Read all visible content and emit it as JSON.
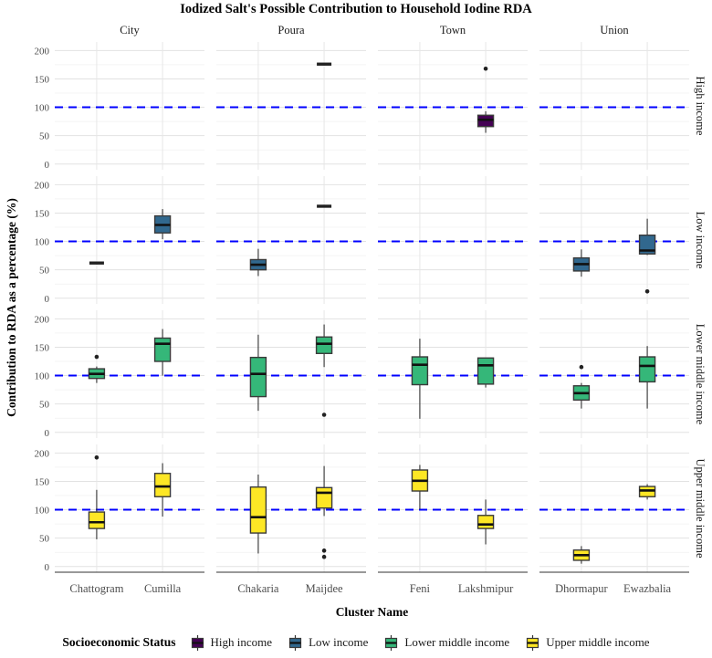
{
  "chart_data": {
    "type": "boxplot",
    "title": "Iodized Salt's Possible Contribution to Household Iodine RDA",
    "xlabel": "Cluster Name",
    "ylabel": "Contribution to RDA as a percentage (%)",
    "col_facets": [
      {
        "label": "City",
        "clusters": [
          "Chattogram",
          "Cumilla"
        ]
      },
      {
        "label": "Poura",
        "clusters": [
          "Chakaria",
          "Maijdee"
        ]
      },
      {
        "label": "Town",
        "clusters": [
          "Feni",
          "Lakshmipur"
        ]
      },
      {
        "label": "Union",
        "clusters": [
          "Dhormapur",
          "Ewazbalia"
        ]
      }
    ],
    "row_facets": [
      "High income",
      "Low income",
      "Lower middle income",
      "Upper middle income"
    ],
    "y_ticks": [
      0,
      50,
      100,
      150,
      200
    ],
    "y_minor_ticks": [
      25,
      75,
      125,
      175
    ],
    "ylim": [
      -10,
      215
    ],
    "grid": true,
    "reference_line": {
      "y": 100,
      "color": "#0000FF",
      "style": "dashed"
    },
    "series_colors": {
      "High income": "#440154",
      "Low income": "#31688E",
      "Lower middle income": "#35B779",
      "Upper middle income": "#FDE725"
    },
    "boxes": [
      {
        "row": "High income",
        "facet": "Poura",
        "cluster": "Maijdee",
        "whislo": 176,
        "q1": 176,
        "med": 176,
        "q3": 176,
        "whishi": 176,
        "outliers": []
      },
      {
        "row": "High income",
        "facet": "Town",
        "cluster": "Lakshmipur",
        "whislo": 55,
        "q1": 66,
        "med": 78,
        "q3": 86,
        "whishi": 93,
        "outliers": [
          168
        ]
      },
      {
        "row": "Low income",
        "facet": "City",
        "cluster": "Chattogram",
        "whislo": 62,
        "q1": 62,
        "med": 62,
        "q3": 62,
        "whishi": 62,
        "outliers": []
      },
      {
        "row": "Low income",
        "facet": "City",
        "cluster": "Cumilla",
        "whislo": 104,
        "q1": 115,
        "med": 129,
        "q3": 145,
        "whishi": 157,
        "outliers": []
      },
      {
        "row": "Low income",
        "facet": "Poura",
        "cluster": "Chakaria",
        "whislo": 39,
        "q1": 50,
        "med": 59,
        "q3": 68,
        "whishi": 87,
        "outliers": []
      },
      {
        "row": "Low income",
        "facet": "Poura",
        "cluster": "Maijdee",
        "whislo": 162,
        "q1": 162,
        "med": 162,
        "q3": 162,
        "whishi": 162,
        "outliers": []
      },
      {
        "row": "Low income",
        "facet": "Union",
        "cluster": "Dhormapur",
        "whislo": 38,
        "q1": 48,
        "med": 60,
        "q3": 71,
        "whishi": 86,
        "outliers": []
      },
      {
        "row": "Low income",
        "facet": "Union",
        "cluster": "Ewazbalia",
        "whislo": 76,
        "q1": 78,
        "med": 84,
        "q3": 111,
        "whishi": 140,
        "outliers": [
          12
        ]
      },
      {
        "row": "Lower middle income",
        "facet": "City",
        "cluster": "Chattogram",
        "whislo": 87,
        "q1": 95,
        "med": 103,
        "q3": 112,
        "whishi": 116,
        "outliers": [
          133
        ]
      },
      {
        "row": "Lower middle income",
        "facet": "City",
        "cluster": "Cumilla",
        "whislo": 100,
        "q1": 125,
        "med": 156,
        "q3": 166,
        "whishi": 182,
        "outliers": []
      },
      {
        "row": "Lower middle income",
        "facet": "Poura",
        "cluster": "Chakaria",
        "whislo": 38,
        "q1": 63,
        "med": 103,
        "q3": 132,
        "whishi": 172,
        "outliers": []
      },
      {
        "row": "Lower middle income",
        "facet": "Poura",
        "cluster": "Maijdee",
        "whislo": 115,
        "q1": 139,
        "med": 156,
        "q3": 168,
        "whishi": 190,
        "outliers": [
          31
        ]
      },
      {
        "row": "Lower middle income",
        "facet": "Town",
        "cluster": "Feni",
        "whislo": 24,
        "q1": 84,
        "med": 119,
        "q3": 133,
        "whishi": 165,
        "outliers": []
      },
      {
        "row": "Lower middle income",
        "facet": "Town",
        "cluster": "Lakshmipur",
        "whislo": 79,
        "q1": 85,
        "med": 118,
        "q3": 131,
        "whishi": 131,
        "outliers": []
      },
      {
        "row": "Lower middle income",
        "facet": "Union",
        "cluster": "Dhormapur",
        "whislo": 42,
        "q1": 57,
        "med": 69,
        "q3": 82,
        "whishi": 87,
        "outliers": [
          115
        ]
      },
      {
        "row": "Lower middle income",
        "facet": "Union",
        "cluster": "Ewazbalia",
        "whislo": 42,
        "q1": 89,
        "med": 117,
        "q3": 133,
        "whishi": 152,
        "outliers": []
      },
      {
        "row": "Upper middle income",
        "facet": "City",
        "cluster": "Chattogram",
        "whislo": 48,
        "q1": 67,
        "med": 78,
        "q3": 96,
        "whishi": 135,
        "outliers": [
          192
        ]
      },
      {
        "row": "Upper middle income",
        "facet": "City",
        "cluster": "Cumilla",
        "whislo": 88,
        "q1": 123,
        "med": 141,
        "q3": 164,
        "whishi": 182,
        "outliers": []
      },
      {
        "row": "Upper middle income",
        "facet": "Poura",
        "cluster": "Chakaria",
        "whislo": 23,
        "q1": 59,
        "med": 87,
        "q3": 140,
        "whishi": 162,
        "outliers": []
      },
      {
        "row": "Upper middle income",
        "facet": "Poura",
        "cluster": "Maijdee",
        "whislo": 89,
        "q1": 103,
        "med": 130,
        "q3": 139,
        "whishi": 177,
        "outliers": [
          28,
          17
        ]
      },
      {
        "row": "Upper middle income",
        "facet": "Town",
        "cluster": "Feni",
        "whislo": 101,
        "q1": 133,
        "med": 151,
        "q3": 170,
        "whishi": 179,
        "outliers": []
      },
      {
        "row": "Upper middle income",
        "facet": "Town",
        "cluster": "Lakshmipur",
        "whislo": 39,
        "q1": 67,
        "med": 74,
        "q3": 90,
        "whishi": 118,
        "outliers": []
      },
      {
        "row": "Upper middle income",
        "facet": "Union",
        "cluster": "Dhormapur",
        "whislo": 5,
        "q1": 11,
        "med": 20,
        "q3": 29,
        "whishi": 36,
        "outliers": []
      },
      {
        "row": "Upper middle income",
        "facet": "Union",
        "cluster": "Ewazbalia",
        "whislo": 118,
        "q1": 123,
        "med": 134,
        "q3": 141,
        "whishi": 145,
        "outliers": []
      }
    ]
  },
  "legend": {
    "title": "Socioeconomic Status",
    "items": [
      {
        "label": "High income",
        "color": "#440154"
      },
      {
        "label": "Low income",
        "color": "#31688E"
      },
      {
        "label": "Lower middle income",
        "color": "#35B779"
      },
      {
        "label": "Upper middle income",
        "color": "#FDE725"
      }
    ]
  }
}
